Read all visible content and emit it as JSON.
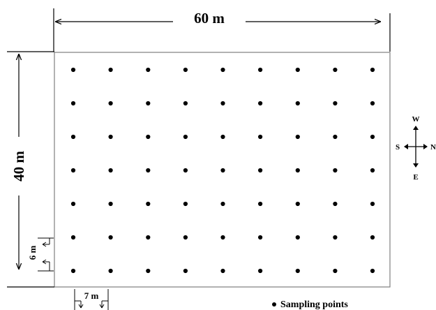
{
  "diagram": {
    "width_label": "60 m",
    "height_label": "40 m",
    "row_spacing_label": "6 m",
    "col_spacing_label": "7 m",
    "grid": {
      "rows": 7,
      "cols": 9
    },
    "legend": {
      "label": "Sampling points"
    },
    "compass": {
      "top": "W",
      "left": "S",
      "right": "N",
      "bottom": "E"
    }
  }
}
